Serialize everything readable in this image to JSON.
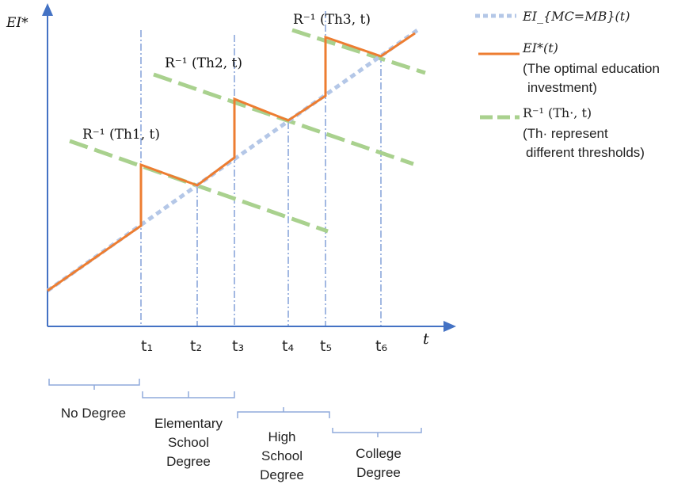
{
  "axes": {
    "y_label": "EI*",
    "x_label": "t"
  },
  "curve_labels": [
    {
      "id": "th1",
      "text": "R⁻¹ (Th1, t)"
    },
    {
      "id": "th2",
      "text": "R⁻¹ (Th2, t)"
    },
    {
      "id": "th3",
      "text": "R⁻¹ (Th3, t)"
    }
  ],
  "time_ticks": [
    "t₁",
    "t₂",
    "t₃",
    "t₄",
    "t₅",
    "t₆"
  ],
  "legend": [
    {
      "style": "dotted-blue",
      "color": "#b4c7e7",
      "lines": [
        "EI_{MC=MB}(t)"
      ]
    },
    {
      "style": "solid-orange",
      "color": "#ed7d31",
      "lines": [
        "EI*(t)",
        "(The optimal education",
        "investment)"
      ]
    },
    {
      "style": "dashed-green",
      "color": "#a9d18e",
      "lines": [
        "R⁻¹ (Th·, t)",
        "(Th· represent",
        "different thresholds)"
      ]
    }
  ],
  "stages": [
    {
      "lines": [
        "No Degree"
      ]
    },
    {
      "lines": [
        "Elementary",
        "School",
        "Degree"
      ]
    },
    {
      "lines": [
        "High",
        "School",
        "Degree"
      ]
    },
    {
      "lines": [
        "College",
        "Degree"
      ]
    }
  ],
  "colors": {
    "axis": "#4472c4",
    "orange": "#ed7d31",
    "green": "#a9d18e",
    "blue_dotted": "#b4c7e7",
    "bracket": "#8faadc"
  }
}
